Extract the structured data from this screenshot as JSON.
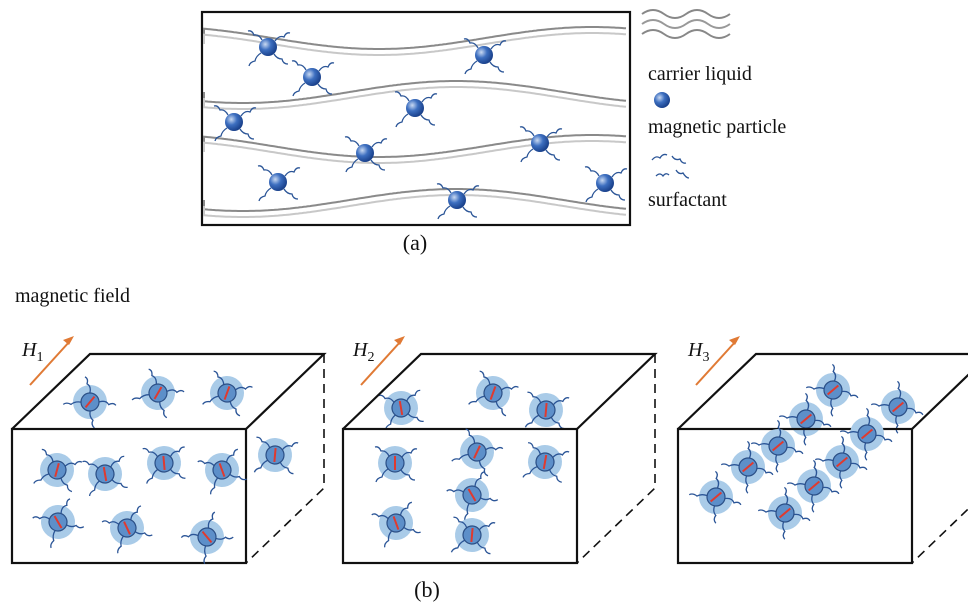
{
  "panel_a": {
    "legend": [
      "carrier liquid",
      "magnetic particle",
      "surfactant"
    ],
    "caption": "(a)"
  },
  "panel_b": {
    "field_label": "magnetic field",
    "fields": [
      {
        "symbol": "H",
        "subscript": "1"
      },
      {
        "symbol": "H",
        "subscript": "2"
      },
      {
        "symbol": "H",
        "subscript": "3"
      }
    ],
    "caption": "(b)"
  }
}
